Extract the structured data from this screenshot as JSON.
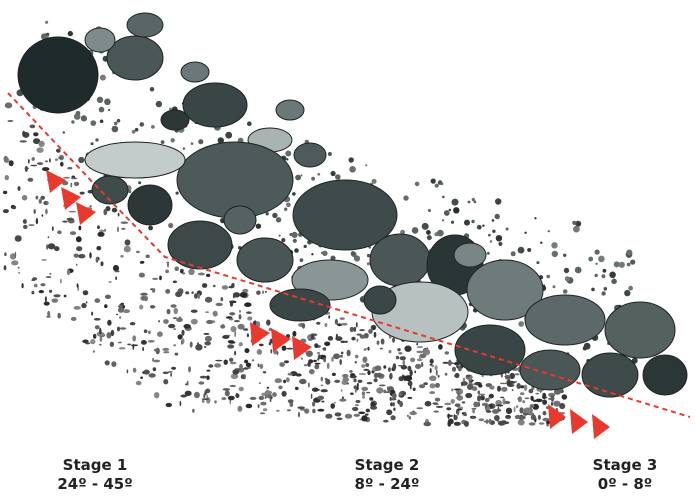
{
  "stages": [
    {
      "label": "Stage 1",
      "angle": "24º - 45º"
    },
    {
      "label": "Stage 2",
      "angle": "8º - 24º"
    },
    {
      "label": "Stage 3",
      "angle": "0º - 8º"
    }
  ]
}
